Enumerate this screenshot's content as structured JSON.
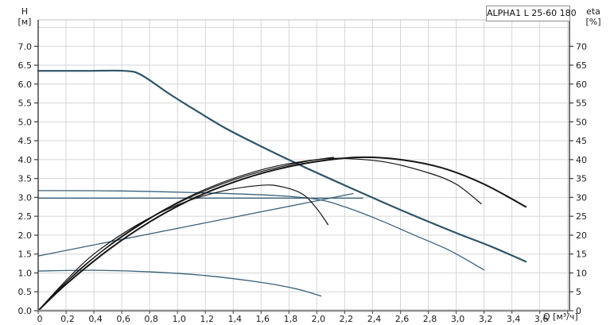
{
  "title_box": "ALPHA1 L 25-60 180",
  "axis_titles": {
    "left_line1": "H",
    "left_line2": "[м]",
    "right_line1": "eta",
    "right_line2": "[%]",
    "bottom": "Q [м³/ч]"
  },
  "colors": {
    "grid": "#d6d6d6",
    "axis_dark": "#3a3a3a",
    "axis_bottom": "#8f8f8f",
    "plot_border_top": "#c2c2c2",
    "qh_curve": "#30566b",
    "eta_curve": "#141414",
    "tick_label": "#1b1b1b"
  },
  "chart_data": {
    "type": "line",
    "title": "ALPHA1 L 25-60 180",
    "xlabel": "Q [м³/ч]",
    "ylabel_left": "H [м]",
    "ylabel_right": "eta [%]",
    "grid": true,
    "legend": "none",
    "axes": {
      "x": {
        "min": 0,
        "max": 3.813,
        "tick_step": 0.2,
        "tick_labels": [
          "0",
          "0,2",
          "0,4",
          "0,6",
          "0,8",
          "1,0",
          "1,2",
          "1,4",
          "1,6",
          "1,8",
          "2,0",
          "2,2",
          "2,4",
          "2,6",
          "2,8",
          "3,0",
          "3,2",
          "3,4",
          "3,6"
        ]
      },
      "y_left": {
        "min": 0,
        "max": 7.7,
        "tick_step": 0.5,
        "tick_labels": [
          "0.0",
          "0.5",
          "1.0",
          "1.5",
          "2.0",
          "2.5",
          "3.0",
          "3.5",
          "4.0",
          "4.5",
          "5.0",
          "5.5",
          "6.0",
          "6.5",
          "7.0"
        ]
      },
      "y_right": {
        "min": 0,
        "max": 77,
        "tick_step": 5,
        "tick_labels": [
          "0",
          "5",
          "10",
          "15",
          "20",
          "25",
          "30",
          "35",
          "40",
          "45",
          "50",
          "55",
          "60",
          "65",
          "70"
        ]
      }
    },
    "series": [
      {
        "name": "qh-speed-3-max",
        "axis": "H",
        "color": "#2f5568",
        "width": 2.2,
        "points": [
          [
            0,
            6.35
          ],
          [
            0.35,
            6.35
          ],
          [
            0.62,
            6.35
          ],
          [
            0.74,
            6.24
          ],
          [
            0.95,
            5.72
          ],
          [
            1.15,
            5.26
          ],
          [
            1.35,
            4.82
          ],
          [
            1.6,
            4.35
          ],
          [
            1.9,
            3.82
          ],
          [
            2.2,
            3.32
          ],
          [
            2.6,
            2.67
          ],
          [
            3.0,
            2.06
          ],
          [
            3.25,
            1.7
          ],
          [
            3.5,
            1.3
          ]
        ]
      },
      {
        "name": "qh-speed-2",
        "axis": "H",
        "color": "#39617a",
        "width": 1.3,
        "points": [
          [
            0,
            3.18
          ],
          [
            0.6,
            3.17
          ],
          [
            1.2,
            3.12
          ],
          [
            1.7,
            3.05
          ],
          [
            2.0,
            2.95
          ],
          [
            2.2,
            2.75
          ],
          [
            2.45,
            2.4
          ],
          [
            2.7,
            2.0
          ],
          [
            2.95,
            1.6
          ],
          [
            3.2,
            1.08
          ]
        ]
      },
      {
        "name": "qh-speed-1-min",
        "axis": "H",
        "color": "#39617a",
        "width": 1.3,
        "points": [
          [
            0,
            1.05
          ],
          [
            0.4,
            1.07
          ],
          [
            0.8,
            1.03
          ],
          [
            1.2,
            0.93
          ],
          [
            1.6,
            0.75
          ],
          [
            1.85,
            0.58
          ],
          [
            2.03,
            0.39
          ]
        ]
      },
      {
        "name": "constant-pressure-line",
        "axis": "H",
        "color": "#39617a",
        "width": 1.3,
        "points": [
          [
            0,
            2.98
          ],
          [
            2.33,
            2.98
          ]
        ]
      },
      {
        "name": "proportional-pressure-line",
        "axis": "H",
        "color": "#39617a",
        "width": 1.3,
        "points": [
          [
            0,
            1.45
          ],
          [
            2.26,
            3.1
          ]
        ]
      },
      {
        "name": "eta-speed-3-max",
        "axis": "eta",
        "color": "#141414",
        "width": 2.0,
        "points": [
          [
            0,
            0
          ],
          [
            0.2,
            7
          ],
          [
            0.5,
            16
          ],
          [
            0.8,
            23.5
          ],
          [
            1.1,
            29.5
          ],
          [
            1.4,
            34
          ],
          [
            1.7,
            37.3
          ],
          [
            2.0,
            39.5
          ],
          [
            2.3,
            40.6
          ],
          [
            2.6,
            40
          ],
          [
            2.9,
            37.8
          ],
          [
            3.2,
            33.5
          ],
          [
            3.5,
            27.5
          ]
        ]
      },
      {
        "name": "eta-speed-2",
        "axis": "eta",
        "color": "#141414",
        "width": 1.2,
        "points": [
          [
            0,
            0
          ],
          [
            0.2,
            7.5
          ],
          [
            0.5,
            17
          ],
          [
            0.8,
            24.5
          ],
          [
            1.1,
            30.5
          ],
          [
            1.4,
            35
          ],
          [
            1.7,
            38.2
          ],
          [
            2.0,
            40
          ],
          [
            2.2,
            40.3
          ],
          [
            2.5,
            39.3
          ],
          [
            2.8,
            36.5
          ],
          [
            3.0,
            33.5
          ],
          [
            3.18,
            28.3
          ]
        ]
      },
      {
        "name": "eta-proportional-pressure",
        "axis": "eta",
        "color": "#141414",
        "width": 1.2,
        "points": [
          [
            0,
            0
          ],
          [
            0.3,
            11
          ],
          [
            0.6,
            19.5
          ],
          [
            0.9,
            26.5
          ],
          [
            1.2,
            31.8
          ],
          [
            1.5,
            35.8
          ],
          [
            1.8,
            38.6
          ],
          [
            2.0,
            40
          ],
          [
            2.12,
            40.6
          ]
        ]
      },
      {
        "name": "eta-speed-1-min",
        "axis": "eta",
        "color": "#141414",
        "width": 1.2,
        "points": [
          [
            0,
            0
          ],
          [
            0.2,
            8
          ],
          [
            0.4,
            15
          ],
          [
            0.7,
            22.5
          ],
          [
            1.0,
            28
          ],
          [
            1.3,
            31.5
          ],
          [
            1.6,
            33.2
          ],
          [
            1.75,
            32.8
          ],
          [
            1.9,
            30.8
          ],
          [
            2.0,
            27
          ],
          [
            2.08,
            22.8
          ]
        ]
      }
    ]
  }
}
